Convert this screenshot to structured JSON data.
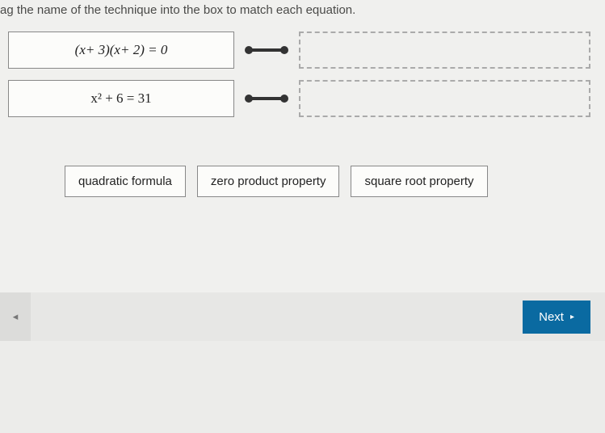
{
  "instruction": "ag the name of the technique into the box to match each equation.",
  "rows": [
    {
      "equation_html": "(<i>x</i> + 3)(<i>x</i> + 2) = 0"
    },
    {
      "equation_html": "x² + 6 = 31"
    }
  ],
  "options": [
    {
      "label": "quadratic formula"
    },
    {
      "label": "zero product property"
    },
    {
      "label": "square root property"
    }
  ],
  "nav": {
    "prev_glyph": "◂",
    "next_label": "Next",
    "next_glyph": "▸"
  },
  "connector": {
    "stroke": "#333333",
    "dot_fill": "#333333",
    "line_width": 4,
    "dot_radius": 5
  },
  "colors": {
    "page_bg": "#f0f0ee",
    "box_border": "#888888",
    "box_bg": "#fcfcfa",
    "drop_border": "#aaaaaa",
    "footer_bg": "#e7e7e5",
    "prev_bg": "#dcdcda",
    "next_bg": "#0a6aa1",
    "next_fg": "#ffffff"
  }
}
